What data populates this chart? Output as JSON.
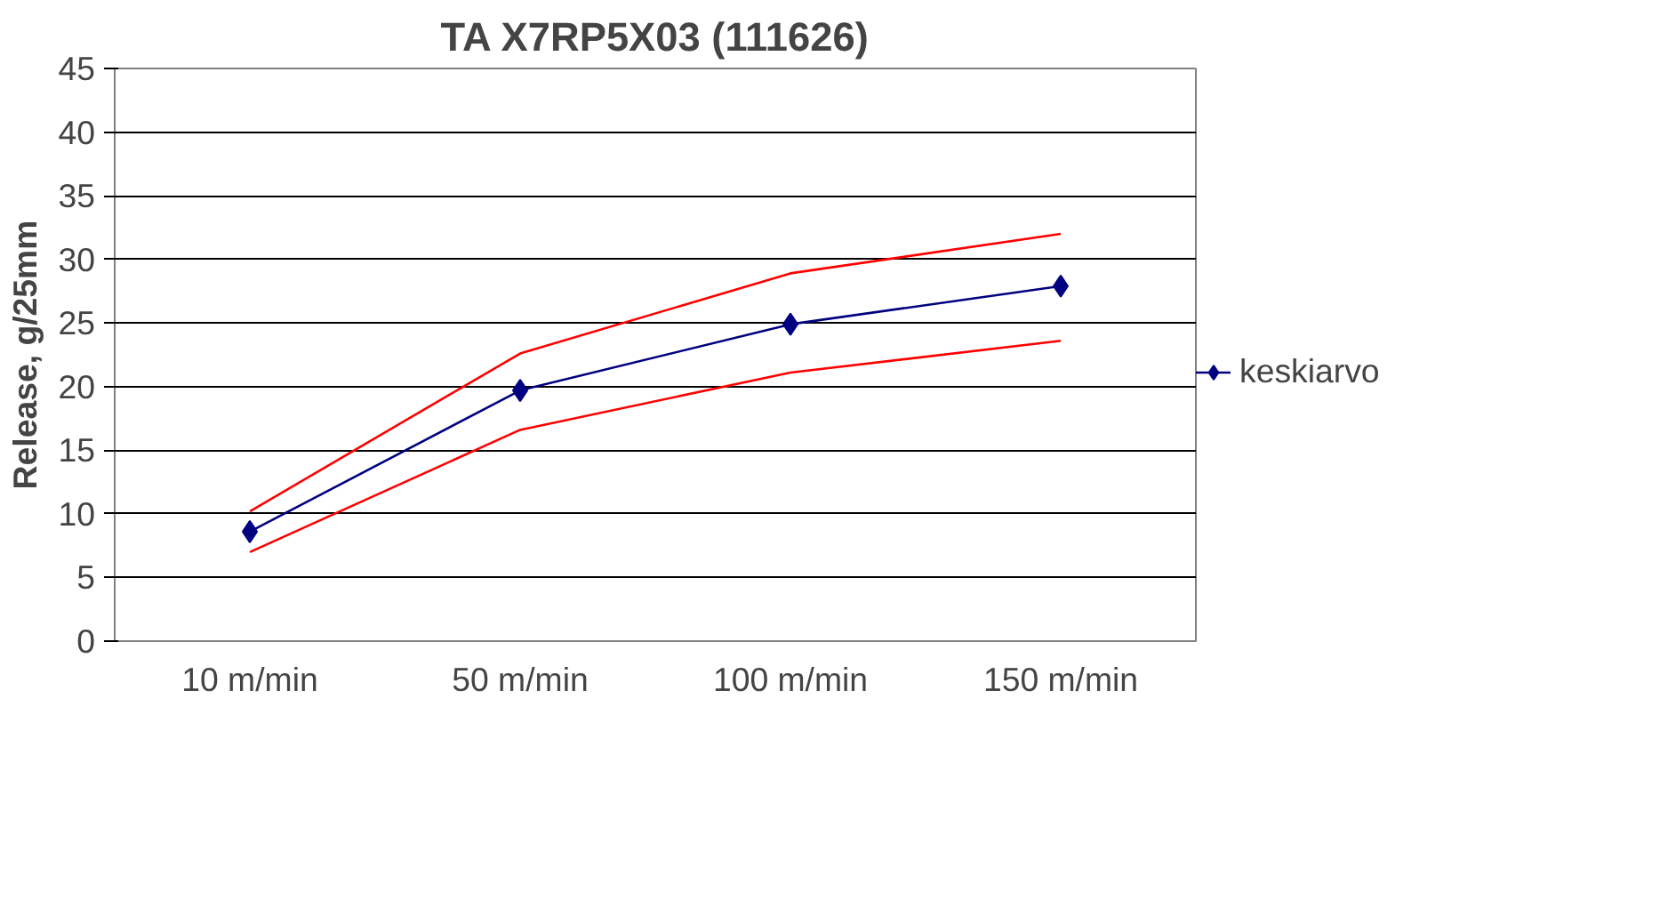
{
  "chart_data": {
    "type": "line",
    "title": "TA X7RP5X03 (111626)",
    "ylabel": "Release, g/25mm",
    "categories": [
      "10 m/min",
      "50 m/min",
      "100 m/min",
      "150 m/min"
    ],
    "series": [
      {
        "name": "keskiarvo",
        "color": "#000080",
        "values": [
          8.6,
          19.7,
          24.9,
          27.9
        ],
        "marker": "diamond"
      },
      {
        "color": "#ff0000",
        "values": [
          10.2,
          22.6,
          28.9,
          32.0
        ],
        "marker": "none"
      },
      {
        "color": "#ff0000",
        "values": [
          7.0,
          16.6,
          21.1,
          23.6
        ],
        "marker": "none"
      }
    ],
    "ylim": [
      0,
      45
    ],
    "yticks": [
      0,
      5,
      10,
      15,
      20,
      25,
      30,
      35,
      40,
      45
    ],
    "grid": "y",
    "legend": "right",
    "line_style": "solid"
  }
}
